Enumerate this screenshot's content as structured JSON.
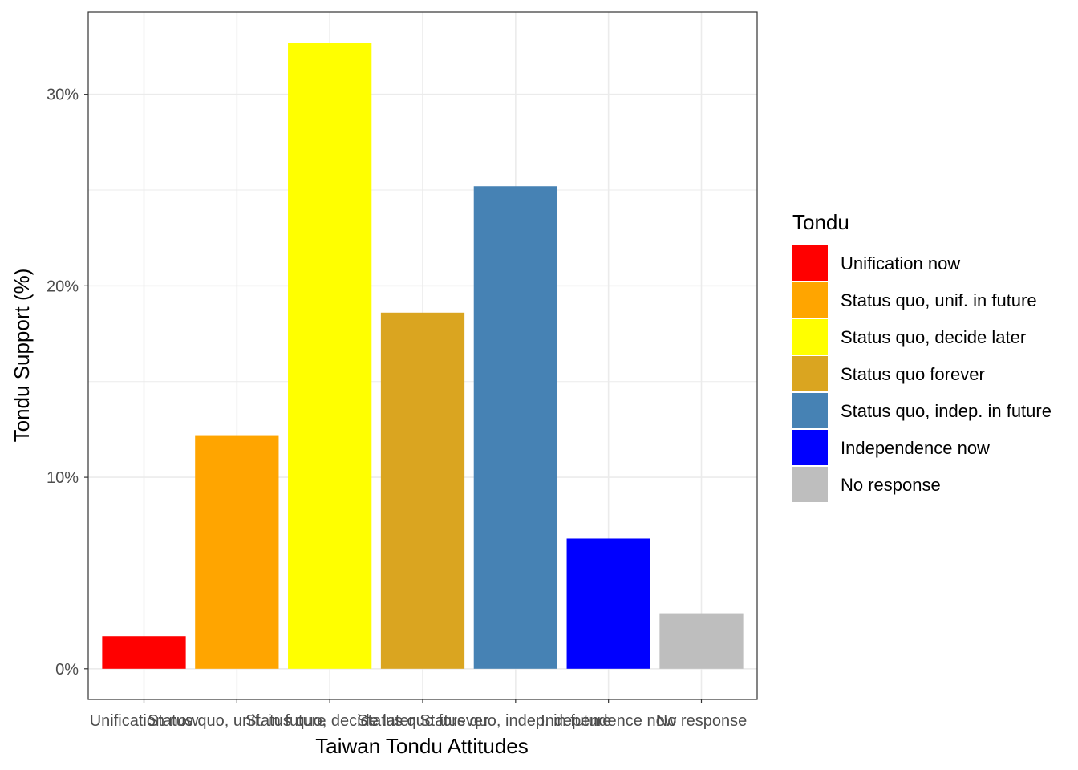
{
  "chart_data": {
    "type": "bar",
    "title": "",
    "xlabel": "Taiwan Tondu Attitudes",
    "ylabel": "Tondu Support (%)",
    "categories": [
      "Unification now",
      "Status quo, unif. in future",
      "Status quo, decide later",
      "Status quo forever",
      "Status quo, indep. in future",
      "Independence now",
      "No response"
    ],
    "values": [
      1.7,
      12.2,
      32.7,
      18.6,
      25.2,
      6.8,
      2.9
    ],
    "colors": [
      "#FF0000",
      "#FFA500",
      "#FFFF00",
      "#DAA520",
      "#4682B4",
      "#0000FF",
      "#BEBEBE"
    ],
    "ylim": [
      -1.6,
      34.3
    ],
    "yticks": [
      0,
      10,
      20,
      30
    ],
    "ytick_labels": [
      "0%",
      "10%",
      "20%",
      "30%"
    ],
    "grid": true,
    "legend": {
      "title": "Tondu",
      "position": "right",
      "items": [
        "Unification now",
        "Status quo, unif. in future",
        "Status quo, decide later",
        "Status quo forever",
        "Status quo, indep. in future",
        "Independence now",
        "No response"
      ]
    }
  }
}
